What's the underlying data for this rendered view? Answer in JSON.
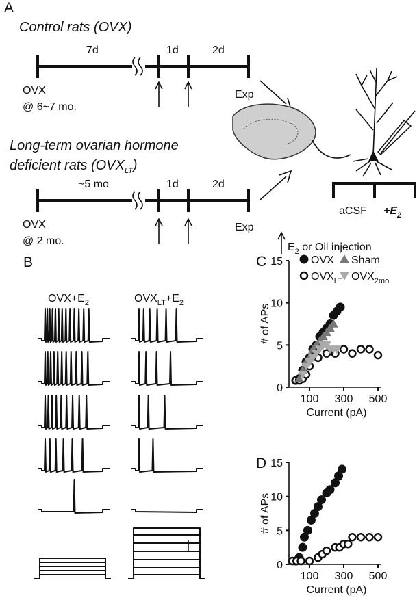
{
  "panel_a": {
    "label": "A",
    "control_title": "Control rats (OVX)",
    "control_timeline": {
      "gap1": "7d",
      "gap2": "1d",
      "gap3": "2d",
      "start": "OVX",
      "start_age": "@ 6~7 mo.",
      "end": "Exp"
    },
    "lt_title_line1": "Long-term ovarian hormone",
    "lt_title_line2": "deficient rats (OVX",
    "lt_title_sub": "LT",
    "lt_title_end": ")",
    "lt_timeline": {
      "gap1": "~5 mo",
      "gap2": "1d",
      "gap3": "2d",
      "start": "OVX",
      "start_age": "@ 2 mo.",
      "end": "Exp"
    },
    "slice": {
      "left": "aCSF",
      "right": "+E",
      "right_sub": "2"
    },
    "injection": {
      "text": "E",
      "sub": "2",
      "rest": " or Oil injection"
    }
  },
  "panel_b": {
    "label": "B",
    "left_title": "OVX+E",
    "left_sub": "2",
    "right_title": "OVX",
    "right_sub": "LT",
    "right_mid": "+E",
    "right_sub2": "2"
  },
  "chart_data": [
    {
      "type": "scatter",
      "label": "C",
      "xlabel": "Current (pA)",
      "ylabel": "# of APs",
      "xlim": [
        -20,
        520
      ],
      "ylim": [
        0,
        15
      ],
      "xticks": [
        100,
        300,
        500
      ],
      "yticks": [
        0,
        5,
        10,
        15
      ],
      "series": [
        {
          "name": "OVX",
          "color": "#111111",
          "marker": "circle",
          "filled": true,
          "x": [
            20,
            40,
            60,
            80,
            100,
            120,
            140,
            160,
            180,
            200,
            220,
            240,
            260,
            280
          ],
          "values": [
            0.8,
            1,
            2,
            3,
            3.5,
            4.5,
            5,
            6,
            6.5,
            7,
            7.5,
            8.5,
            9,
            9.5
          ]
        },
        {
          "name": "OVX",
          "subscript": "LT",
          "color": "#111111",
          "marker": "circle",
          "filled": false,
          "x": [
            20,
            40,
            60,
            80,
            100,
            150,
            200,
            250,
            300,
            350,
            400,
            450,
            500
          ],
          "values": [
            0.8,
            0.8,
            1,
            1.5,
            2.5,
            3.5,
            4,
            4,
            4.5,
            4,
            4.5,
            4.5,
            3.8
          ]
        },
        {
          "name": "Sham",
          "color": "#777777",
          "marker": "triangle-up",
          "filled": true,
          "x": [
            40,
            60,
            80,
            100,
            120,
            140,
            160,
            180,
            200,
            220,
            240
          ],
          "values": [
            1,
            2,
            3,
            3.5,
            4.5,
            5,
            5.5,
            6,
            6.5,
            7,
            7.5
          ]
        },
        {
          "name": "OVX",
          "subscript": "2mo",
          "color": "#aaaaaa",
          "marker": "triangle-down",
          "filled": true,
          "x": [
            60,
            80,
            100,
            120,
            140,
            160,
            180,
            200,
            220,
            240,
            260
          ],
          "values": [
            1.5,
            2.5,
            3,
            3.5,
            4,
            4.5,
            5,
            5,
            4.5,
            4.5,
            4.5
          ]
        }
      ]
    },
    {
      "type": "scatter",
      "label": "D",
      "xlabel": "Current (pA)",
      "ylabel": "# of APs",
      "xlim": [
        -20,
        520
      ],
      "ylim": [
        0,
        15
      ],
      "xticks": [
        100,
        300,
        500
      ],
      "yticks": [
        0,
        5,
        10,
        15
      ],
      "series": [
        {
          "color": "#111111",
          "marker": "circle",
          "filled": true,
          "x": [
            20,
            40,
            60,
            70,
            90,
            110,
            130,
            150,
            170,
            200,
            220,
            250,
            270,
            290
          ],
          "values": [
            0.5,
            1,
            2.5,
            4,
            5,
            6.5,
            7.5,
            8.5,
            9.5,
            10.5,
            11,
            12,
            13,
            14
          ]
        },
        {
          "color": "#111111",
          "marker": "circle",
          "filled": false,
          "x": [
            0,
            25,
            50,
            100,
            150,
            175,
            200,
            250,
            275,
            300,
            325,
            350,
            400,
            450,
            500
          ],
          "values": [
            0.5,
            0.5,
            0.5,
            0.5,
            1,
            1.5,
            2,
            2.5,
            2.5,
            3,
            3,
            4,
            4,
            4,
            4
          ]
        }
      ]
    }
  ]
}
